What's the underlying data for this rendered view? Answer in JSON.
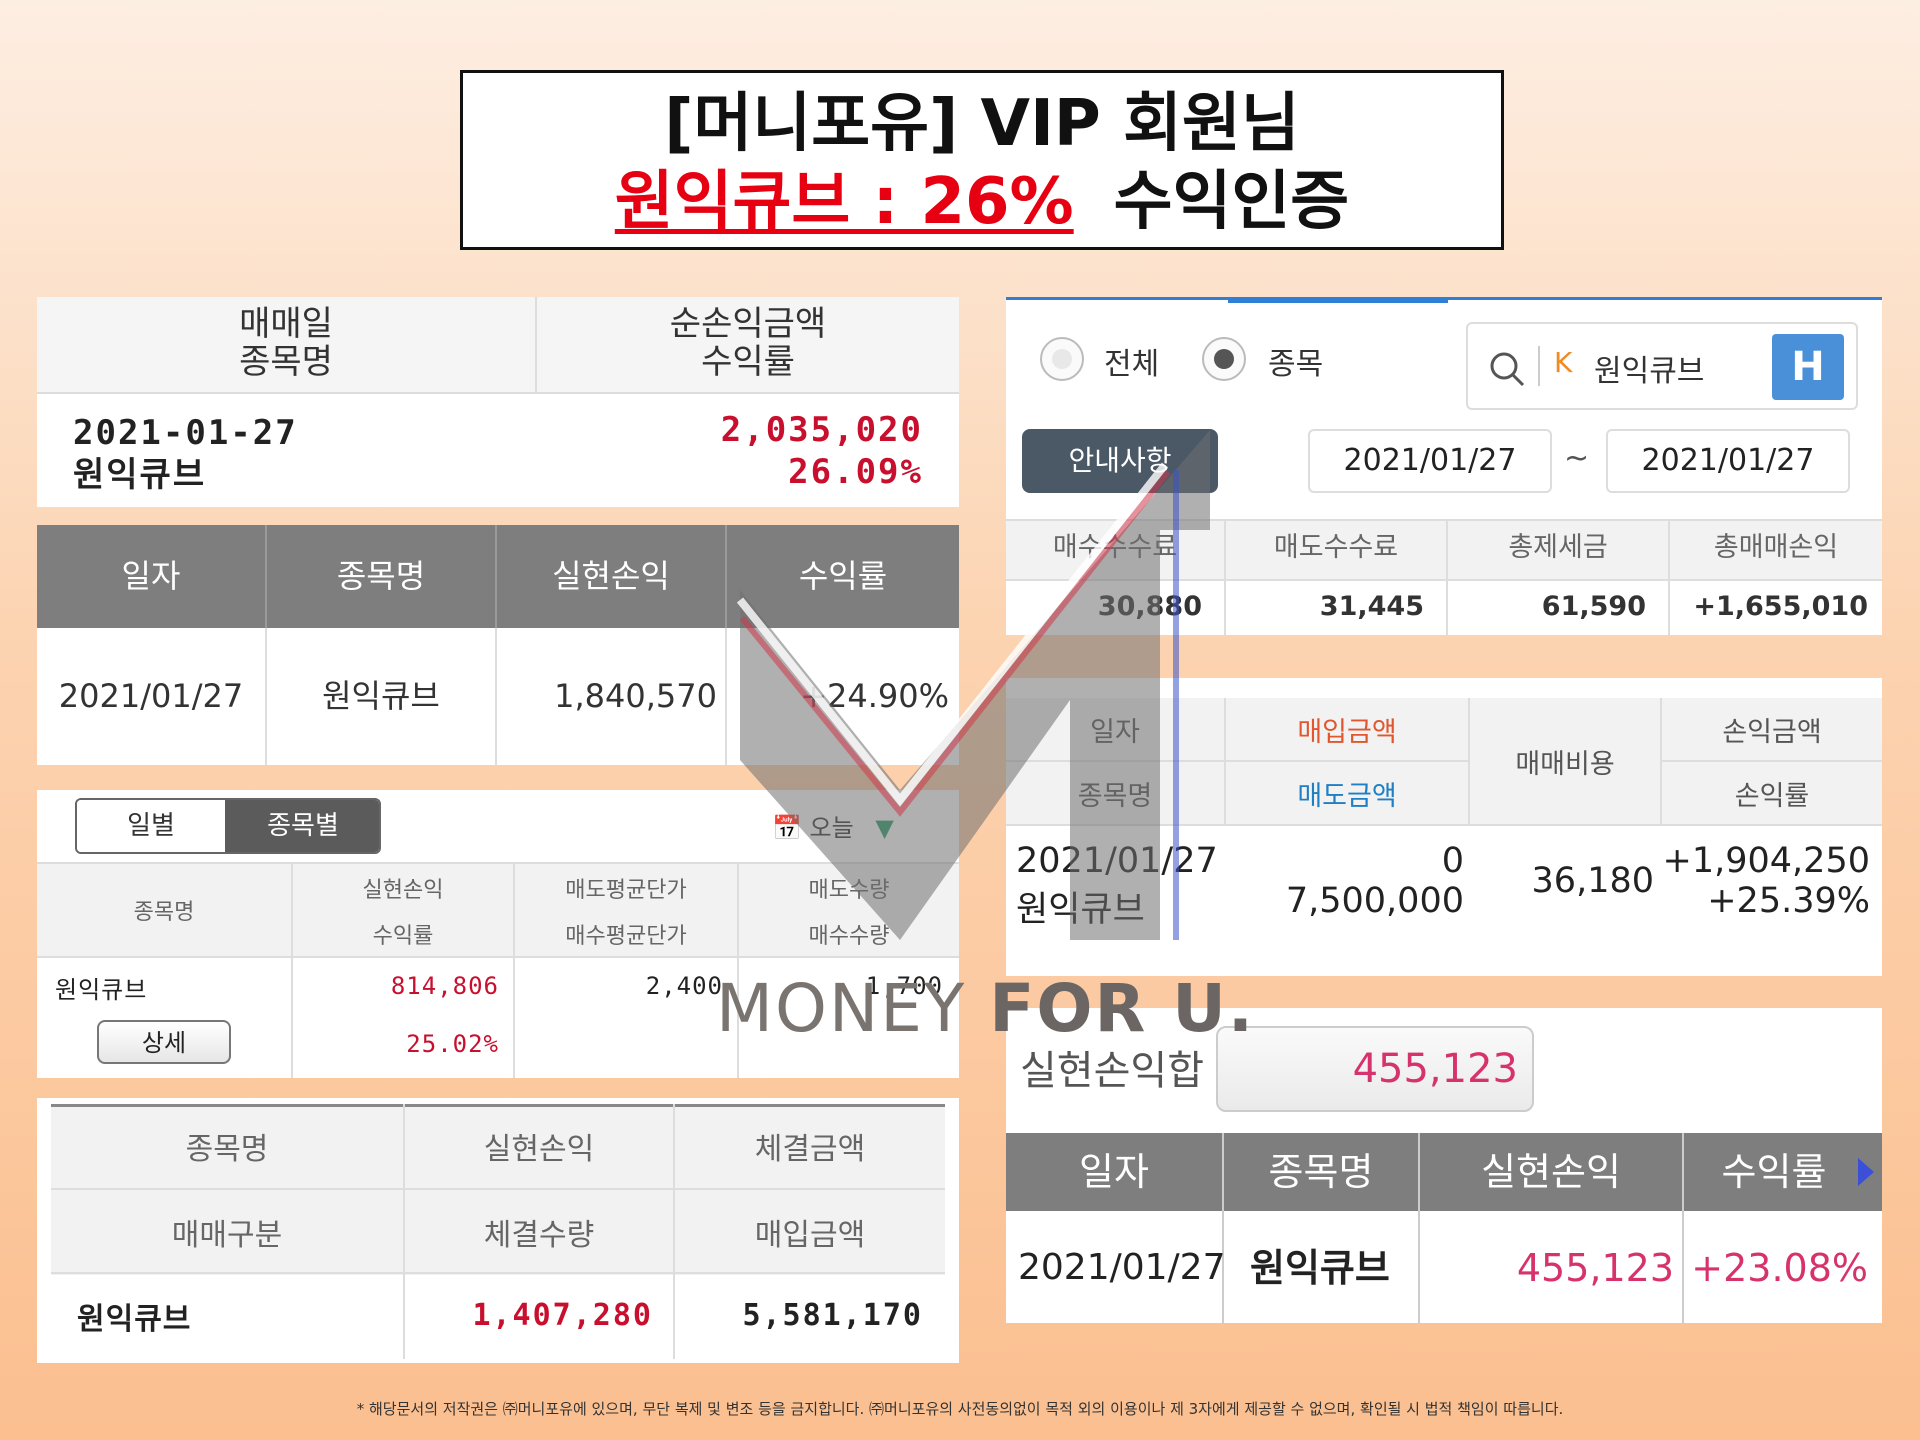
{
  "title": {
    "line1": "[머니포유] VIP 회원님",
    "line2_red": "원익큐브 : 26%",
    "line2_black": "수익인증"
  },
  "panel1": {
    "header_col1": [
      "매매일",
      "종목명"
    ],
    "header_col2": [
      "순손익금액",
      "수익률"
    ],
    "date": "2021-01-27",
    "stock": "원익큐브",
    "amount": "2,035,020",
    "rate": "26.09%"
  },
  "panel2": {
    "headers": [
      "일자",
      "종목명",
      "실현손익",
      "수익률"
    ],
    "row": [
      "2021/01/27",
      "원익큐브",
      "1,840,570",
      "+24.90%"
    ]
  },
  "panel3": {
    "tab_daily": "일별",
    "tab_by_stock": "종목별",
    "date_filter": "오늘",
    "h_stock": "종목명",
    "h_profit": "실현손익",
    "h_rate": "수익률",
    "h_sell_avg": "매도평균단가",
    "h_buy_avg": "매수평균단가",
    "h_sell_qty": "매도수량",
    "h_buy_qty": "매수수량",
    "stock": "원익큐브",
    "profit": "814,806",
    "rate": "25.02%",
    "sell_avg": "2,400",
    "sell_qty": "1,700",
    "detail_button": "상세"
  },
  "panel4": {
    "h1": [
      "종목명",
      "실현손익",
      "체결금액"
    ],
    "h2": [
      "매매구분",
      "체결수량",
      "매입금액"
    ],
    "stock": "원익큐브",
    "profit": "1,407,280",
    "buy_amount": "5,581,170"
  },
  "panel5": {
    "radio_all": "전체",
    "radio_stock": "종목",
    "search_prefix": "K",
    "search_value": "원익큐브",
    "h_button": "H",
    "notice_button": "안내사항",
    "date_from": "2021/01/27",
    "date_sep": "~",
    "date_to": "2021/01/27",
    "headers": [
      "매수수수료",
      "매도수수료",
      "총제세금",
      "총매매손익"
    ],
    "values": [
      "30,880",
      "31,445",
      "61,590",
      "+1,655,010"
    ]
  },
  "panel6": {
    "h_date": "일자",
    "h_stock": "종목명",
    "h_buy": "매입금액",
    "h_sell": "매도금액",
    "h_cost": "매매비용",
    "h_pl": "손익금액",
    "h_rate": "손익률",
    "date": "2021/01/27",
    "stock": "원익큐브",
    "buy": "0",
    "sell": "7,500,000",
    "cost": "36,180",
    "pl": "+1,904,250",
    "rate": "+25.39%"
  },
  "panel7": {
    "sum_label": "실현손익합",
    "sum_value": "455,123",
    "headers": [
      "일자",
      "종목명",
      "실현손익",
      "수익률"
    ],
    "row": [
      "2021/01/27",
      "원익큐브",
      "455,123",
      "+23.08%"
    ]
  },
  "watermark": {
    "part1": "MONEY ",
    "part2": "FOR U."
  },
  "footer": "* 해당문서의 저작권은 ㈜머니포유에 있으며, 무단 복제 및 변조 등을 금지합니다. ㈜머니포유의 사전동의없이 목적 외의 이용이나 제 3자에게 제공할 수 없으며, 확인될 시 법적 책임이 따릅니다.",
  "colors": {
    "red": "#c8102e",
    "pink": "#d6336c",
    "blue": "#2f7fd6",
    "header_gray": "#7e7e7e"
  }
}
